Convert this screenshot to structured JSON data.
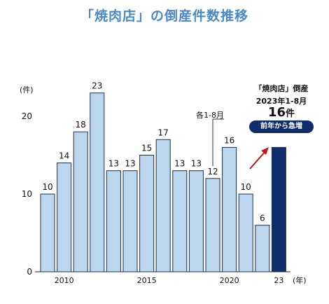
{
  "chart_data": {
    "type": "bar",
    "title": "「焼肉店」の倒産件数推移",
    "ylabel": "(件)",
    "xunit": "(年)",
    "ylim": [
      0,
      25
    ],
    "y_ticks": [
      0,
      10,
      20
    ],
    "x_tick_labels": [
      {
        "index": 1,
        "label": "2010"
      },
      {
        "index": 6,
        "label": "2015"
      },
      {
        "index": 11,
        "label": "2020"
      },
      {
        "index": 14,
        "label": "23"
      }
    ],
    "categories": [
      "2009",
      "2010",
      "2011",
      "2012",
      "2013",
      "2014",
      "2015",
      "2016",
      "2017",
      "2018",
      "2019",
      "2020",
      "2021",
      "2022",
      "2023"
    ],
    "values": [
      10,
      14,
      18,
      23,
      13,
      13,
      15,
      17,
      13,
      13,
      12,
      16,
      10,
      6,
      16
    ],
    "data_labels": [
      "10",
      "14",
      "18",
      "23",
      "13",
      "13",
      "15",
      "17",
      "13",
      "13",
      "12",
      "16",
      "10",
      "6",
      ""
    ],
    "colors": {
      "bar_fill": "#bcd6ee",
      "bar_stroke": "#1e2f4f",
      "highlight_fill": "#0f2d6b",
      "title": "#4a89c8",
      "arrow": "#c0161c"
    },
    "period_note": "各1-8月",
    "annotation": {
      "line1": "「焼肉店」倒産",
      "line2": "2023年1-8月",
      "count": "16",
      "count_unit": "件",
      "badge": "前年から急増"
    }
  }
}
